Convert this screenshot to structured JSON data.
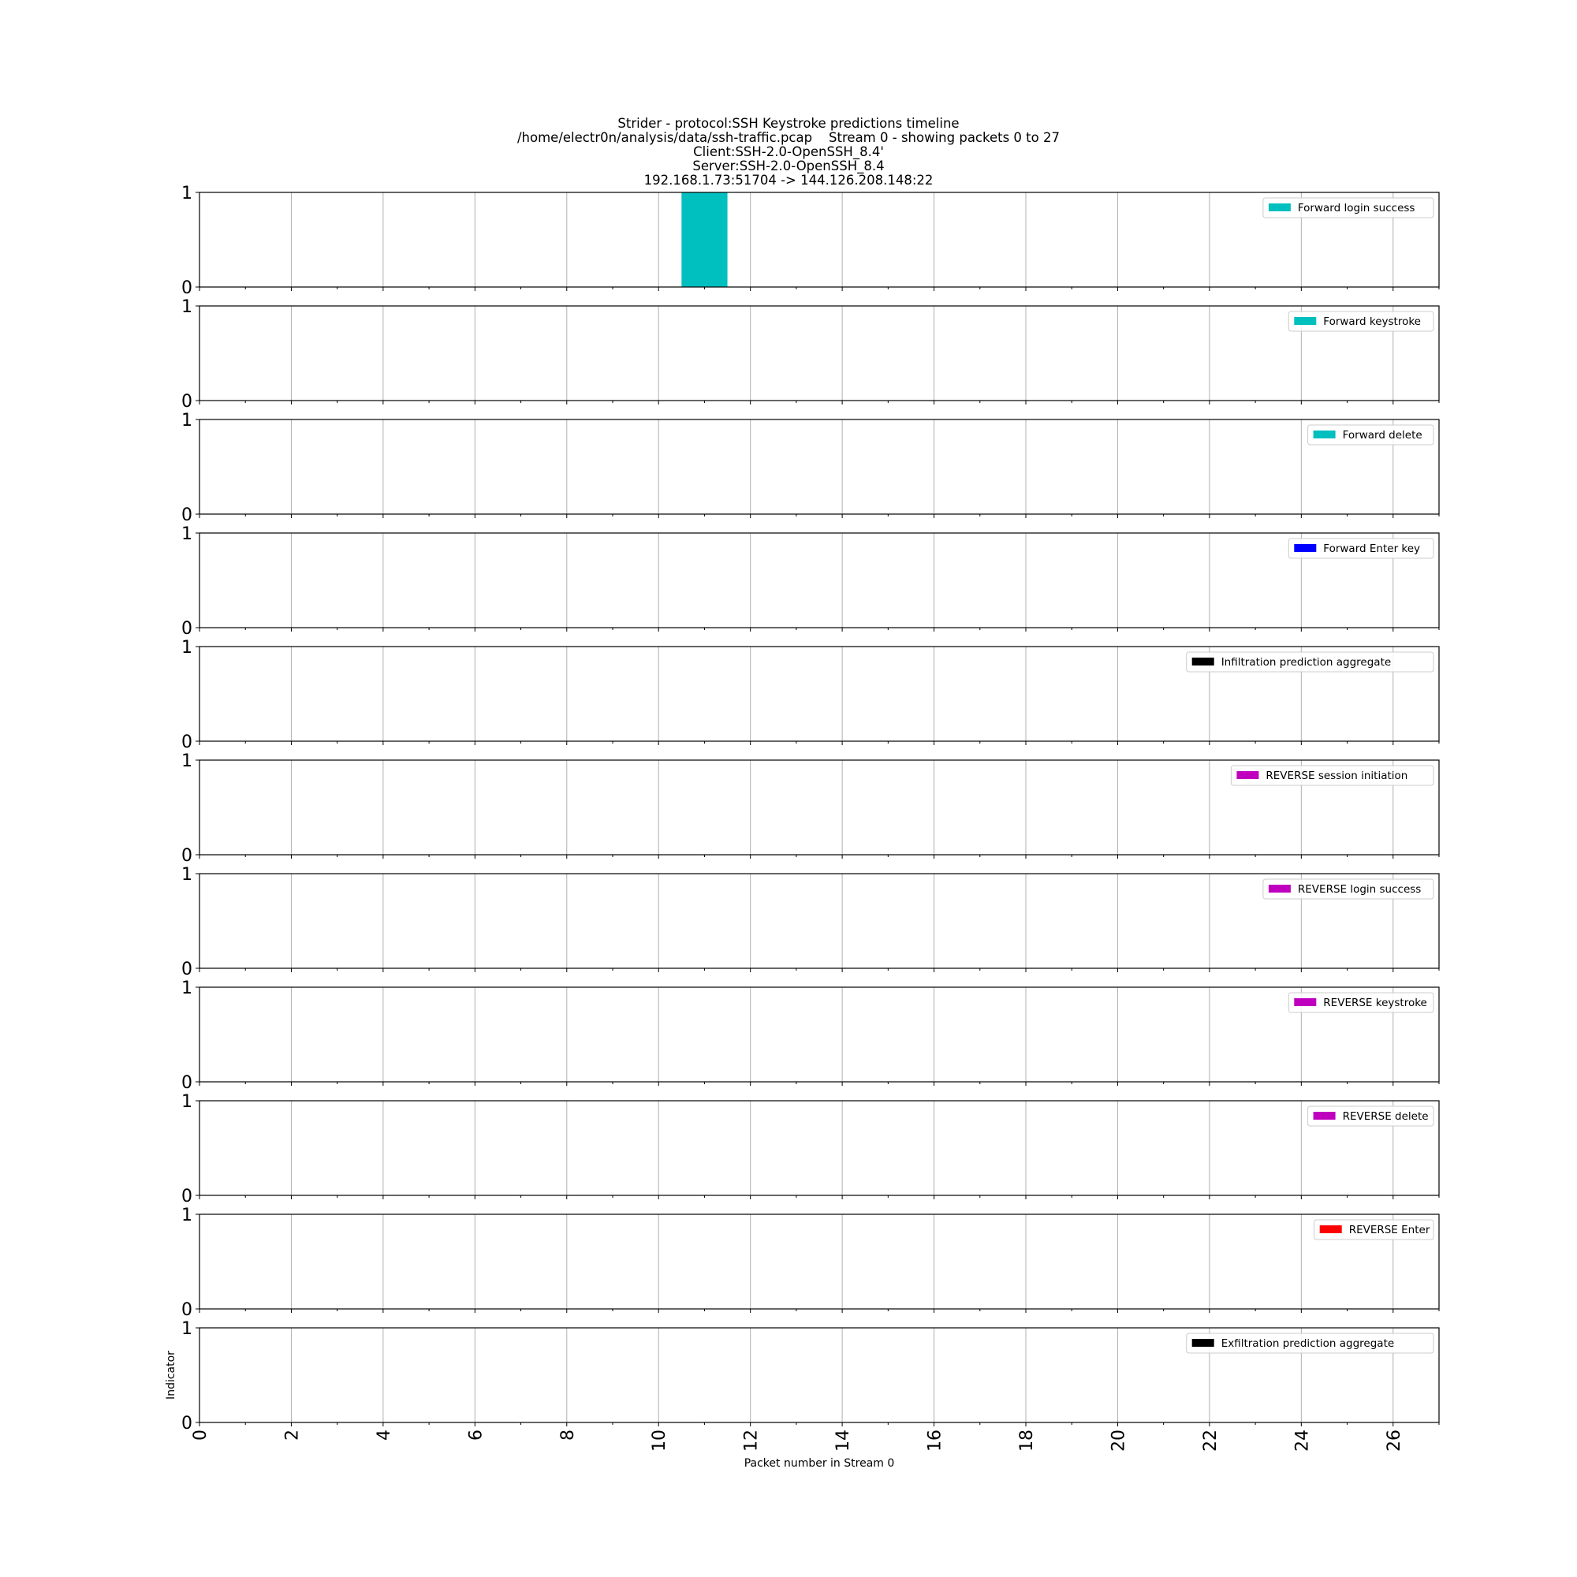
{
  "header": {
    "title_lines": [
      "Strider - protocol:SSH Keystroke predictions timeline",
      "/home/electr0n/analysis/data/ssh-traffic.pcap    Stream 0 - showing packets 0 to 27",
      "Client:SSH-2.0-OpenSSH_8.4'",
      "Server:SSH-2.0-OpenSSH_8.4",
      "192.168.1.73:51704 -> 144.126.208.148:22"
    ]
  },
  "chart_data": {
    "type": "bar",
    "xlabel": "Packet number in Stream 0",
    "ylabel": "Indicator",
    "xlim": [
      0,
      27
    ],
    "ylim": [
      0,
      1
    ],
    "x_ticks": [
      0,
      2,
      4,
      6,
      8,
      10,
      12,
      14,
      16,
      18,
      20,
      22,
      24,
      26
    ],
    "y_ticks": [
      0,
      1
    ],
    "grid": "vertical",
    "legend_placement": "top-right",
    "panels": [
      {
        "name": "Forward login success",
        "color": "#00bfbf",
        "bars": [
          {
            "x": 11,
            "value": 1
          }
        ]
      },
      {
        "name": "Forward keystroke",
        "color": "#00bfbf",
        "bars": []
      },
      {
        "name": "Forward delete",
        "color": "#00bfbf",
        "bars": []
      },
      {
        "name": "Forward Enter key",
        "color": "#0000ff",
        "bars": []
      },
      {
        "name": "Infiltration prediction aggregate",
        "color": "#000000",
        "bars": []
      },
      {
        "name": "REVERSE session initiation",
        "color": "#bf00bf",
        "bars": []
      },
      {
        "name": "REVERSE login success",
        "color": "#bf00bf",
        "bars": []
      },
      {
        "name": "REVERSE keystroke",
        "color": "#bf00bf",
        "bars": []
      },
      {
        "name": "REVERSE delete",
        "color": "#bf00bf",
        "bars": []
      },
      {
        "name": "REVERSE Enter",
        "color": "#ff0000",
        "bars": []
      },
      {
        "name": "Exfiltration prediction aggregate",
        "color": "#000000",
        "bars": []
      }
    ]
  }
}
